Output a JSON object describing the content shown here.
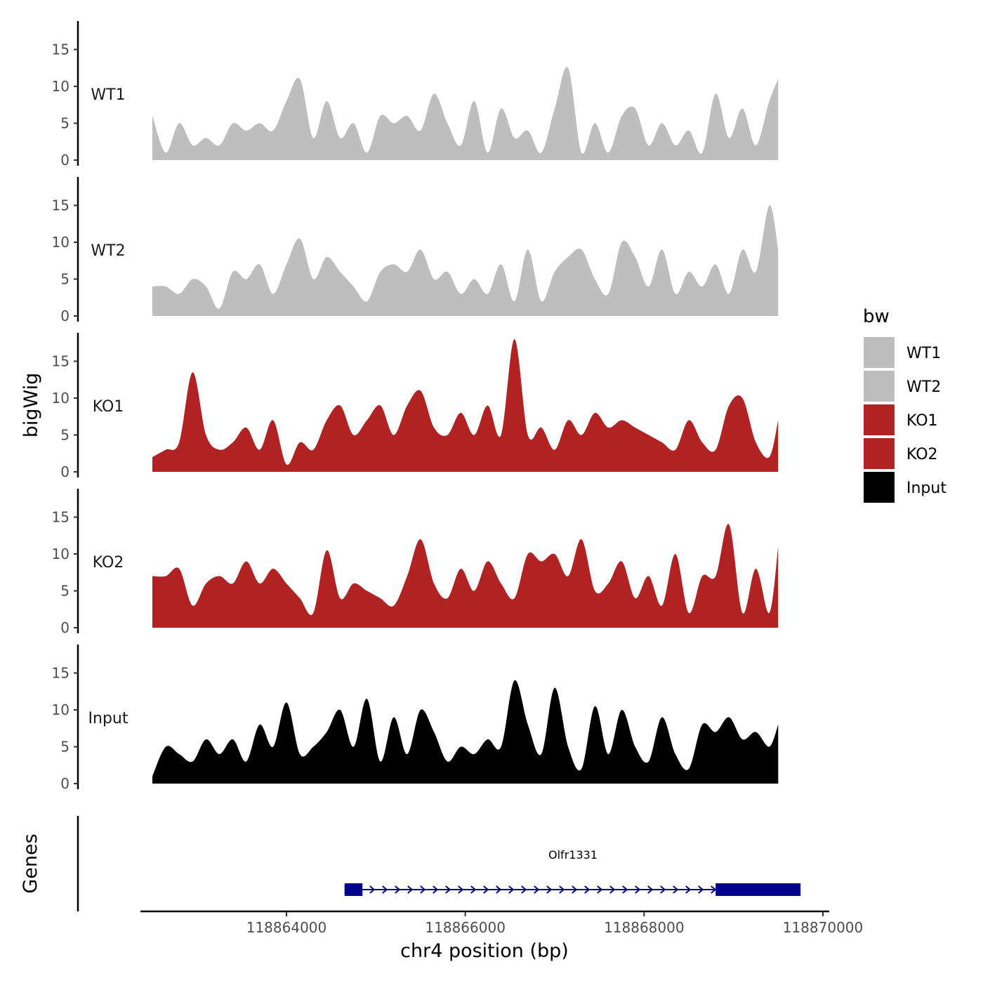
{
  "chart_data": {
    "type": "area",
    "y_axis_title": "bigWig",
    "genes_axis_title": "Genes",
    "xlabel": "chr4 position (bp)",
    "x_range": [
      118862500,
      118869750
    ],
    "x_ticks": [
      118864000,
      118866000,
      118868000,
      118870000
    ],
    "x_tick_labels": [
      "118864000",
      "118866000",
      "118868000",
      "118870000"
    ],
    "ylim": [
      0,
      18.5
    ],
    "y_ticks": [
      0,
      5,
      10,
      15
    ],
    "y_tick_labels": [
      "0",
      "5",
      "10",
      "15"
    ],
    "series": [
      {
        "name": "WT1",
        "color": "#bebebe",
        "x": [
          118862500,
          118862650,
          118862800,
          118862950,
          118863100,
          118863250,
          118863400,
          118863550,
          118863700,
          118863850,
          118864000,
          118864150,
          118864300,
          118864450,
          118864600,
          118864750,
          118864900,
          118865050,
          118865200,
          118865350,
          118865500,
          118865650,
          118865800,
          118865950,
          118866100,
          118866250,
          118866400,
          118866550,
          118866700,
          118866850,
          118867000,
          118867150,
          118867300,
          118867450,
          118867600,
          118867750,
          118867900,
          118868050,
          118868200,
          118868350,
          118868500,
          118868650,
          118868800,
          118868950,
          118869100,
          118869250,
          118869400,
          118869500
        ],
        "values": [
          6,
          1,
          5,
          2,
          3,
          2,
          5,
          4,
          5,
          4,
          8,
          11,
          3,
          8,
          3,
          5,
          1,
          6,
          5,
          6,
          4,
          9,
          5,
          2,
          8,
          1,
          7,
          3,
          4,
          1,
          7,
          12.5,
          1,
          5,
          1,
          6,
          7,
          2,
          5,
          2,
          4,
          1,
          9,
          3,
          7,
          2,
          8,
          11
        ]
      },
      {
        "name": "WT2",
        "color": "#bebebe",
        "x": [
          118862500,
          118862650,
          118862800,
          118862950,
          118863100,
          118863250,
          118863400,
          118863550,
          118863700,
          118863850,
          118864000,
          118864150,
          118864300,
          118864450,
          118864600,
          118864750,
          118864900,
          118865050,
          118865200,
          118865350,
          118865500,
          118865650,
          118865800,
          118865950,
          118866100,
          118866250,
          118866400,
          118866550,
          118866700,
          118866850,
          118867000,
          118867150,
          118867300,
          118867450,
          118867600,
          118867750,
          118867900,
          118868050,
          118868200,
          118868350,
          118868500,
          118868650,
          118868800,
          118868950,
          118869100,
          118869250,
          118869400,
          118869500
        ],
        "values": [
          4,
          4,
          3,
          5,
          4,
          1,
          6,
          5,
          7,
          3,
          7,
          10.5,
          5,
          8,
          6,
          4,
          2,
          6,
          7,
          6,
          9,
          5,
          6,
          3,
          5,
          3,
          7,
          2,
          9,
          2,
          6,
          8,
          9,
          5,
          3,
          10,
          8,
          4,
          9,
          3,
          6,
          4,
          7,
          3,
          9,
          6,
          15,
          9
        ]
      },
      {
        "name": "KO1",
        "color": "#b22222",
        "x": [
          118862500,
          118862650,
          118862800,
          118862950,
          118863100,
          118863250,
          118863400,
          118863550,
          118863700,
          118863850,
          118864000,
          118864150,
          118864300,
          118864450,
          118864600,
          118864750,
          118864900,
          118865050,
          118865200,
          118865350,
          118865500,
          118865650,
          118865800,
          118865950,
          118866100,
          118866250,
          118866400,
          118866550,
          118866700,
          118866850,
          118867000,
          118867150,
          118867300,
          118867450,
          118867600,
          118867750,
          118867900,
          118868050,
          118868200,
          118868350,
          118868500,
          118868650,
          118868800,
          118868950,
          118869100,
          118869250,
          118869400,
          118869500
        ],
        "values": [
          2,
          3,
          4,
          13.5,
          5,
          3,
          4,
          6,
          3,
          7,
          1,
          4,
          3,
          7,
          9,
          5,
          7,
          9,
          5,
          9,
          11,
          6,
          5,
          8,
          5,
          9,
          5,
          18,
          5,
          6,
          3,
          7,
          5,
          8,
          6,
          7,
          6,
          5,
          4,
          3,
          7,
          4,
          3,
          9,
          10,
          4,
          2,
          7
        ]
      },
      {
        "name": "KO2",
        "color": "#b22222",
        "x": [
          118862500,
          118862650,
          118862800,
          118862950,
          118863100,
          118863250,
          118863400,
          118863550,
          118863700,
          118863850,
          118864000,
          118864150,
          118864300,
          118864450,
          118864600,
          118864750,
          118864900,
          118865050,
          118865200,
          118865350,
          118865500,
          118865650,
          118865800,
          118865950,
          118866100,
          118866250,
          118866400,
          118866550,
          118866700,
          118866850,
          118867000,
          118867150,
          118867300,
          118867450,
          118867600,
          118867750,
          118867900,
          118868050,
          118868200,
          118868350,
          118868500,
          118868650,
          118868800,
          118868950,
          118869100,
          118869250,
          118869400,
          118869500
        ],
        "values": [
          7,
          7,
          8,
          3,
          6,
          7,
          6,
          9,
          6,
          8,
          6,
          4,
          2,
          10.5,
          4,
          6,
          5,
          4,
          3,
          7,
          12,
          6,
          4,
          8,
          5,
          9,
          6,
          4,
          10,
          9,
          10,
          7,
          12,
          5,
          6,
          9,
          4,
          7,
          3,
          10,
          2,
          7,
          7,
          14,
          2,
          8,
          2,
          11
        ]
      },
      {
        "name": "Input",
        "color": "#000000",
        "x": [
          118862500,
          118862650,
          118862800,
          118862950,
          118863100,
          118863250,
          118863400,
          118863550,
          118863700,
          118863850,
          118864000,
          118864150,
          118864300,
          118864450,
          118864600,
          118864750,
          118864900,
          118865050,
          118865200,
          118865350,
          118865500,
          118865650,
          118865800,
          118865950,
          118866100,
          118866250,
          118866400,
          118866550,
          118866700,
          118866850,
          118867000,
          118867150,
          118867300,
          118867450,
          118867600,
          118867750,
          118867900,
          118868050,
          118868200,
          118868350,
          118868500,
          118868650,
          118868800,
          118868950,
          118869100,
          118869250,
          118869400,
          118869500
        ],
        "values": [
          1,
          5,
          4,
          3,
          6,
          4,
          6,
          3,
          8,
          5,
          11,
          4,
          5,
          7,
          10,
          5,
          11.5,
          3,
          9,
          4,
          10,
          7,
          3,
          5,
          4,
          6,
          5,
          14,
          8,
          4,
          13,
          5,
          2,
          10.5,
          4,
          10,
          5,
          3,
          9,
          4,
          2,
          8,
          7,
          9,
          6,
          7,
          5,
          8
        ]
      }
    ],
    "legend": {
      "title": "bw",
      "position": "right",
      "entries": [
        {
          "label": "WT1",
          "color": "#bebebe"
        },
        {
          "label": "WT2",
          "color": "#bebebe"
        },
        {
          "label": "KO1",
          "color": "#b22222"
        },
        {
          "label": "KO2",
          "color": "#b22222"
        },
        {
          "label": "Input",
          "color": "#000000"
        }
      ]
    },
    "gene": {
      "name": "Olfr1331",
      "strand": "+",
      "color": "#00008b",
      "start": 118864650,
      "end": 118869750,
      "exons": [
        [
          118864650,
          118864850
        ],
        [
          118868800,
          118869750
        ]
      ]
    }
  }
}
